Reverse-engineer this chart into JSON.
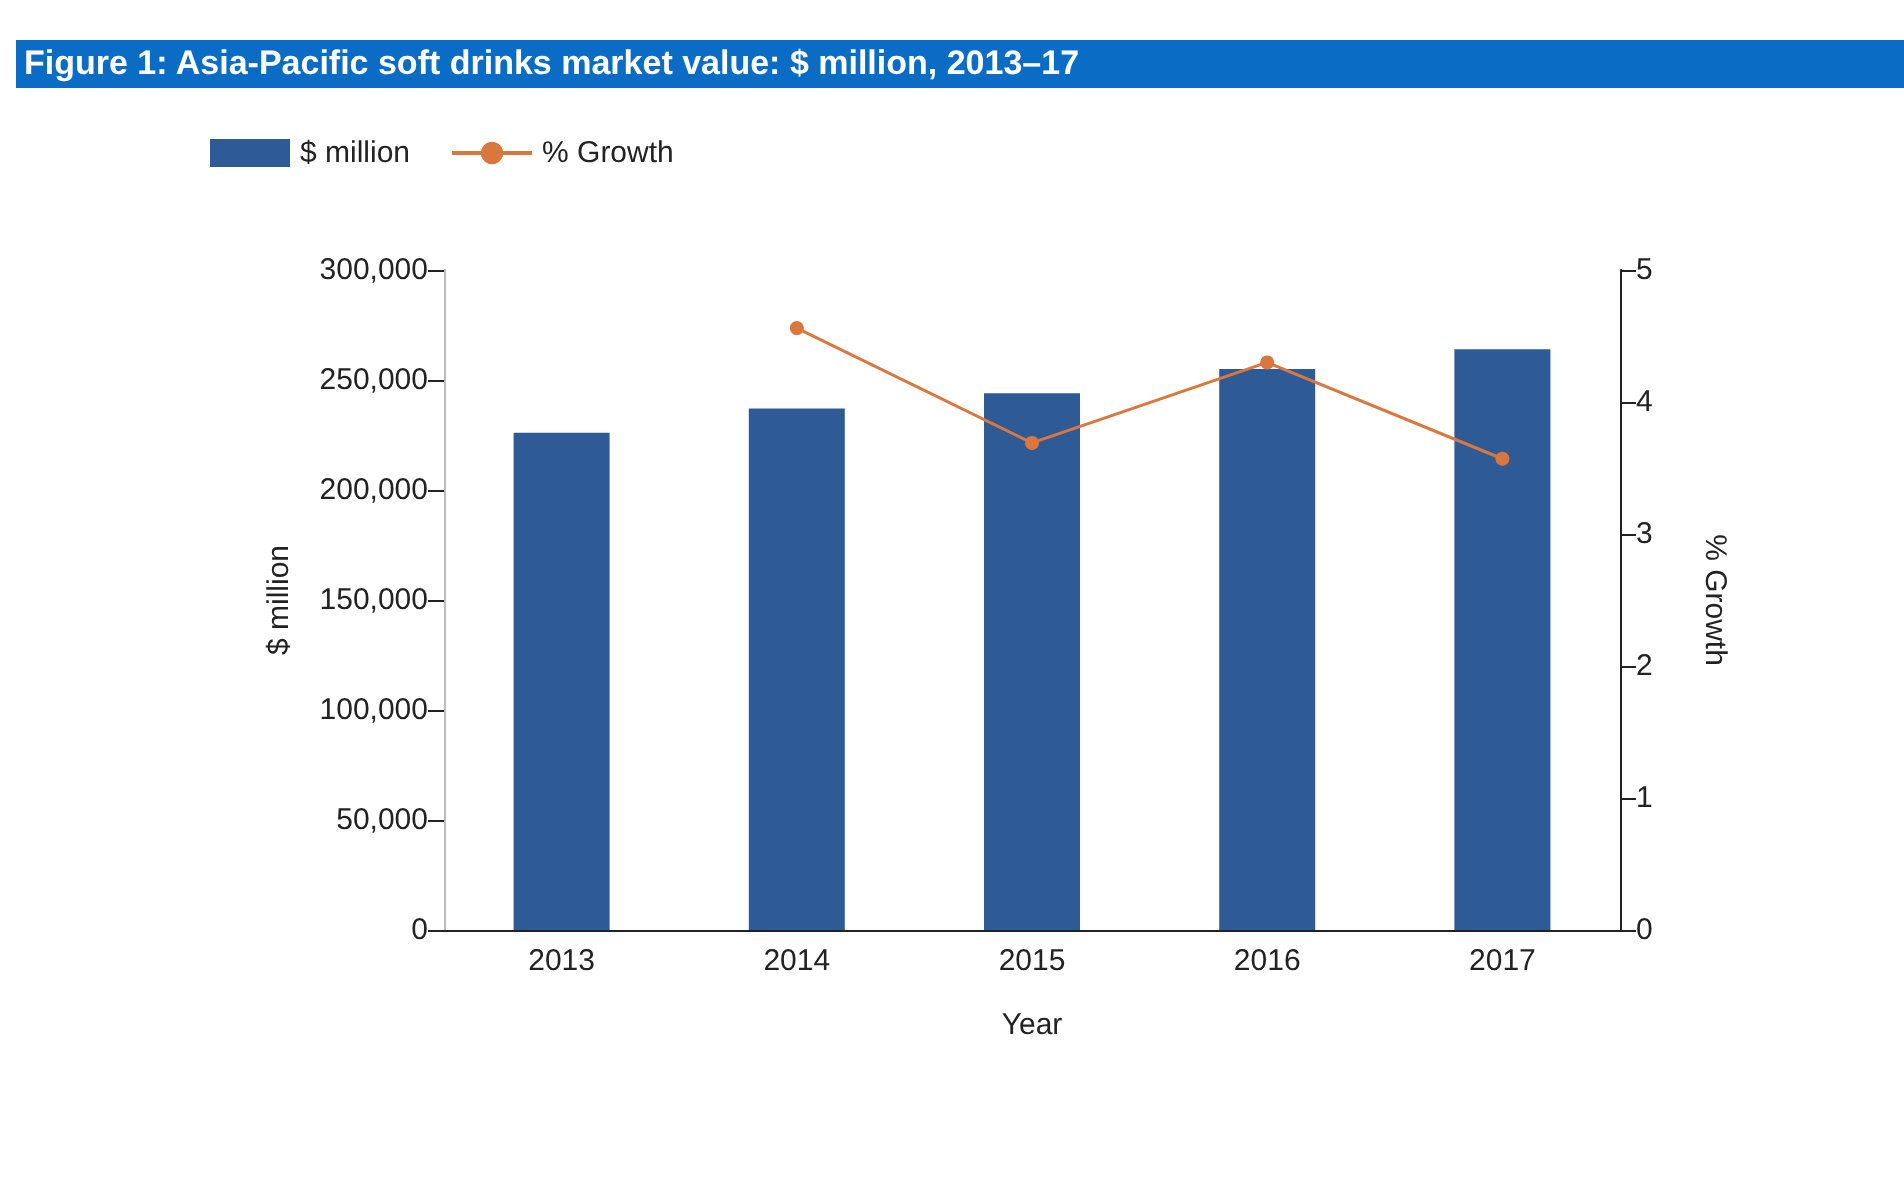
{
  "chart_data": {
    "type": "bar",
    "title": "Figure 1: Asia-Pacific soft drinks market value: $ million, 2013–17",
    "xlabel": "Year",
    "ylabel": "$ million",
    "y2label": "% Growth",
    "categories": [
      "2013",
      "2014",
      "2015",
      "2016",
      "2017"
    ],
    "series": [
      {
        "name": "$ million",
        "color": "#2e5b96",
        "values": [
          226000,
          237000,
          244000,
          255000,
          264000
        ]
      },
      {
        "name": "% Growth",
        "type": "line",
        "axis": "y2",
        "color": "#d9773f",
        "values": [
          null,
          4.56,
          3.69,
          4.3,
          3.57
        ]
      }
    ],
    "ylim": [
      0,
      300000
    ],
    "yticks": [
      0,
      {
        "value": 50000,
        "label": "50,000"
      },
      {
        "value": 100000,
        "label": "100,000"
      },
      {
        "value": 150000,
        "label": "150,000"
      },
      {
        "value": 200000,
        "label": "200,000"
      },
      {
        "value": 250000,
        "label": "250,000"
      },
      {
        "value": 300000,
        "label": "300,000"
      }
    ],
    "y2lim": [
      0,
      5
    ],
    "y2ticks": [
      0,
      1,
      2,
      3,
      4,
      5
    ],
    "grid": false,
    "legend": "top left",
    "marker": "circle",
    "line_style": "solid"
  }
}
